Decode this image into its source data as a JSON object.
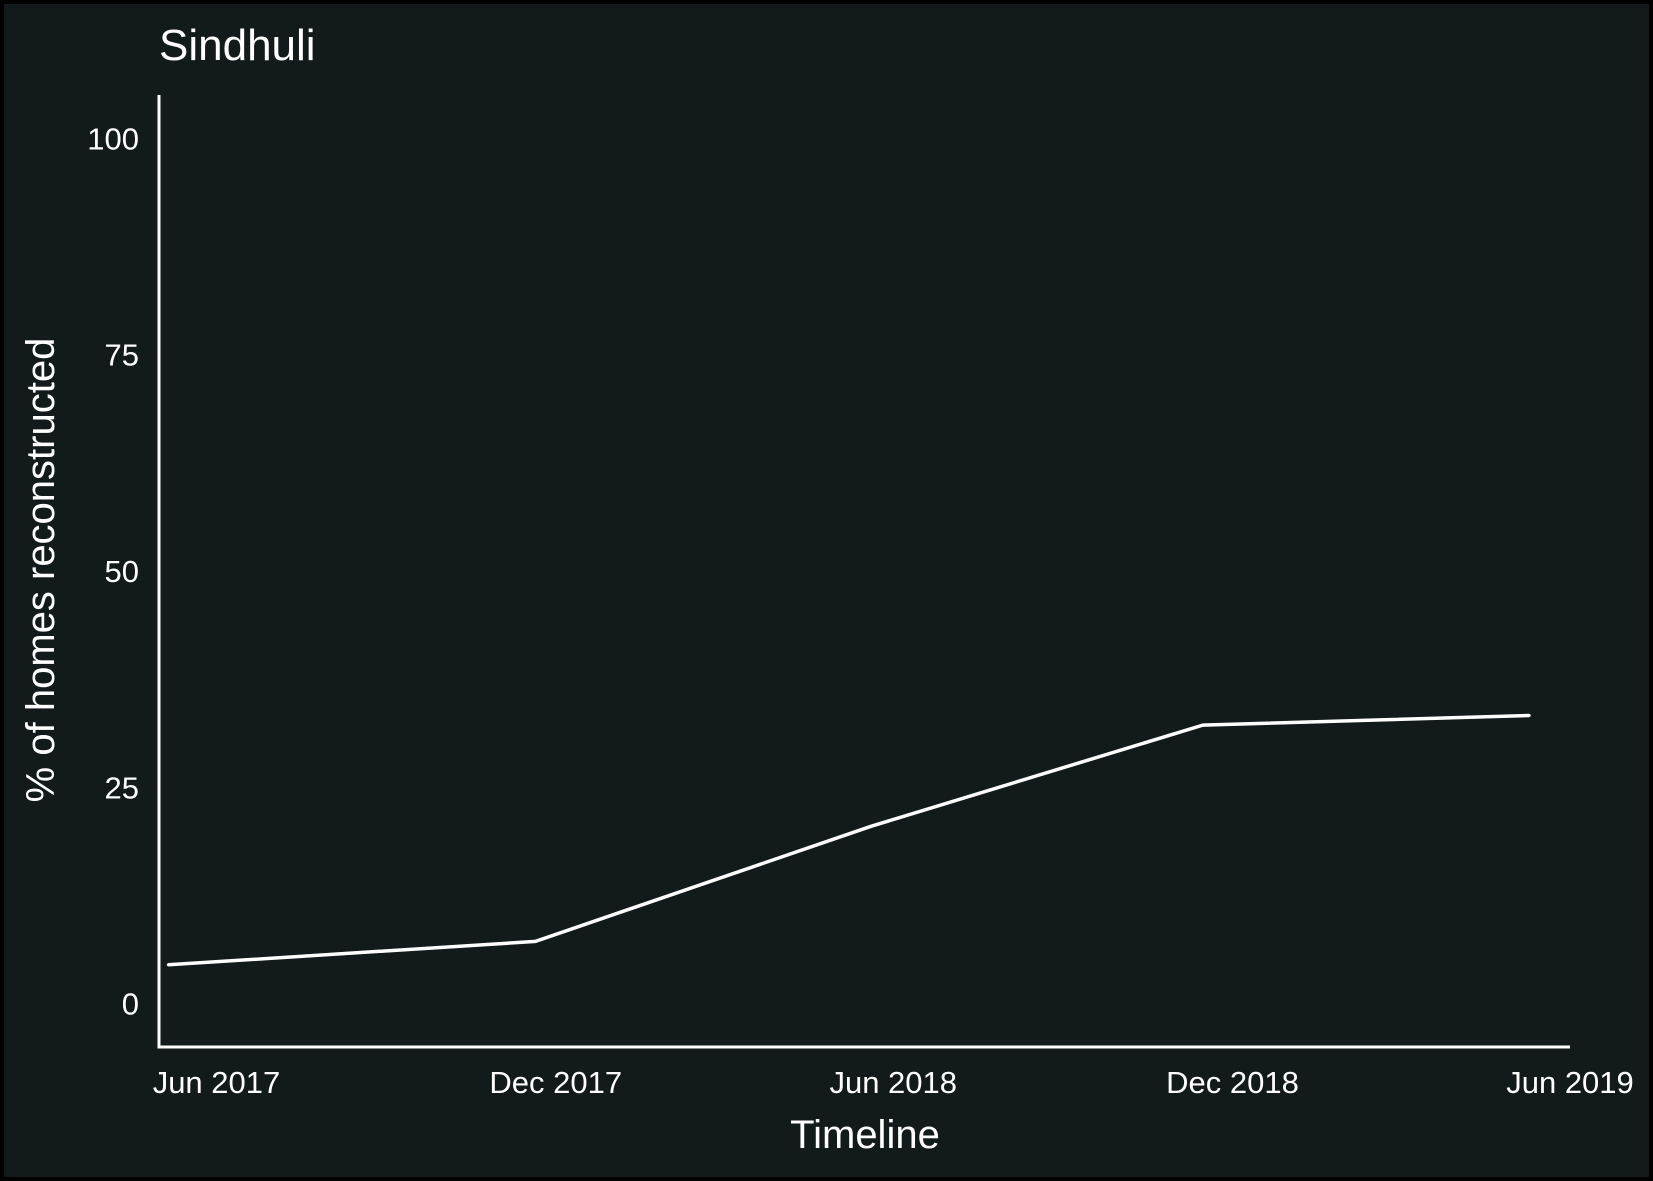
{
  "chart_data": {
    "type": "line",
    "title": "Sindhuli",
    "xlabel": "Timeline",
    "ylabel": "% of homes reconstructed",
    "ylim": [
      -5,
      105
    ],
    "yticks": [
      0,
      25,
      50,
      75,
      100
    ],
    "ytick_labels": [
      "0",
      "25",
      "50",
      "75",
      "100"
    ],
    "xlim": [
      "2017-05-01",
      "2019-06-01"
    ],
    "xticks": [
      "2017-06-01",
      "2017-12-01",
      "2018-06-01",
      "2018-12-01",
      "2019-06-01"
    ],
    "xtick_labels": [
      "Jun 2017",
      "Dec 2017",
      "Jun 2018",
      "Dec 2018",
      "Jun 2019"
    ],
    "grid": false,
    "series": [
      {
        "x": [
          "2017-05-06",
          "2017-11-20",
          "2018-05-20",
          "2018-11-15",
          "2019-05-10"
        ],
        "y": [
          4.5,
          7.2,
          20.5,
          32.2,
          33.3
        ]
      }
    ],
    "colors": {
      "background": "#000000",
      "panel": "#131a1c",
      "foreground": "#ffffff",
      "line": "#ffffff"
    }
  }
}
